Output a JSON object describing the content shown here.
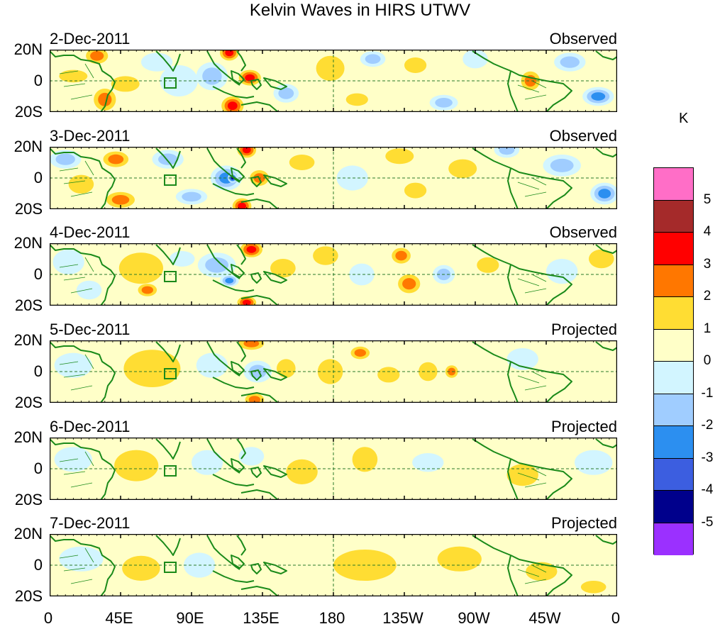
{
  "title": "Kelvin Waves in HIRS UTWV",
  "units": "K",
  "lat_labels": [
    "20N",
    "0",
    "20S"
  ],
  "lon_labels": [
    "0",
    "45E",
    "90E",
    "135E",
    "180",
    "135W",
    "90W",
    "45W",
    "0"
  ],
  "panels": [
    {
      "date": "2-Dec-2011",
      "status": "Observed"
    },
    {
      "date": "3-Dec-2011",
      "status": "Observed"
    },
    {
      "date": "4-Dec-2011",
      "status": "Observed"
    },
    {
      "date": "5-Dec-2011",
      "status": "Projected"
    },
    {
      "date": "6-Dec-2011",
      "status": "Projected"
    },
    {
      "date": "7-Dec-2011",
      "status": "Projected"
    }
  ],
  "colorbar": {
    "levels": [
      "5",
      "4",
      "3",
      "2",
      "1",
      "0",
      "-1",
      "-2",
      "-3",
      "-4",
      "-5"
    ],
    "colors": [
      "#ff6ec7",
      "#a52a2a",
      "#ff0000",
      "#ff7700",
      "#ffdd33",
      "#ffffc8",
      "#d2f5ff",
      "#a0cdff",
      "#2c8ff0",
      "#3c5ee0",
      "#00008c",
      "#9b30ff"
    ]
  },
  "colors": {
    "coastline": "#1a8a1a",
    "equator": "#2a7a2a"
  },
  "anomaly_blobs": [
    [
      {
        "lon": 15,
        "lat": 3,
        "rx": 9,
        "ry": 4,
        "v": 1
      },
      {
        "lon": 30,
        "lat": 16,
        "rx": 7,
        "ry": 5,
        "v": 2
      },
      {
        "lon": 35,
        "lat": -12,
        "rx": 7,
        "ry": 7,
        "v": 2
      },
      {
        "lon": 48,
        "lat": -2,
        "rx": 9,
        "ry": 5,
        "v": 1
      },
      {
        "lon": 68,
        "lat": 12,
        "rx": 10,
        "ry": 6,
        "v": -1
      },
      {
        "lon": 82,
        "lat": 0,
        "rx": 12,
        "ry": 10,
        "v": -1
      },
      {
        "lon": 103,
        "lat": 3,
        "rx": 10,
        "ry": 9,
        "v": -2
      },
      {
        "lon": 114,
        "lat": 18,
        "rx": 6,
        "ry": 5,
        "v": 3
      },
      {
        "lon": 127,
        "lat": 2,
        "rx": 7,
        "ry": 5,
        "v": 3
      },
      {
        "lon": 116,
        "lat": -16,
        "rx": 7,
        "ry": 6,
        "v": 3
      },
      {
        "lon": 150,
        "lat": -8,
        "rx": 8,
        "ry": 6,
        "v": -2
      },
      {
        "lon": 178,
        "lat": 8,
        "rx": 9,
        "ry": 8,
        "v": 1
      },
      {
        "lon": 195,
        "lat": -12,
        "rx": 7,
        "ry": 4,
        "v": 1
      },
      {
        "lon": 205,
        "lat": 14,
        "rx": 8,
        "ry": 5,
        "v": -2
      },
      {
        "lon": 232,
        "lat": 10,
        "rx": 7,
        "ry": 5,
        "v": 1
      },
      {
        "lon": 250,
        "lat": -14,
        "rx": 9,
        "ry": 5,
        "v": -2
      },
      {
        "lon": 270,
        "lat": 14,
        "rx": 8,
        "ry": 6,
        "v": -1
      },
      {
        "lon": 305,
        "lat": 0,
        "rx": 6,
        "ry": 6,
        "v": 2
      },
      {
        "lon": 330,
        "lat": 12,
        "rx": 10,
        "ry": 6,
        "v": -2
      },
      {
        "lon": 348,
        "lat": -10,
        "rx": 10,
        "ry": 6,
        "v": -3
      }
    ],
    [
      {
        "lon": 10,
        "lat": 12,
        "rx": 10,
        "ry": 6,
        "v": -2
      },
      {
        "lon": 20,
        "lat": -4,
        "rx": 8,
        "ry": 6,
        "v": 1
      },
      {
        "lon": 42,
        "lat": 12,
        "rx": 8,
        "ry": 5,
        "v": 2
      },
      {
        "lon": 45,
        "lat": -14,
        "rx": 9,
        "ry": 5,
        "v": 2
      },
      {
        "lon": 75,
        "lat": 12,
        "rx": 10,
        "ry": 6,
        "v": -2
      },
      {
        "lon": 90,
        "lat": -12,
        "rx": 10,
        "ry": 5,
        "v": -2
      },
      {
        "lon": 112,
        "lat": 0,
        "rx": 10,
        "ry": 8,
        "v": -3
      },
      {
        "lon": 116,
        "lat": 0,
        "rx": 3,
        "ry": 3,
        "v": -5
      },
      {
        "lon": 125,
        "lat": 18,
        "rx": 6,
        "ry": 5,
        "v": 3
      },
      {
        "lon": 133,
        "lat": 0,
        "rx": 6,
        "ry": 5,
        "v": 2
      },
      {
        "lon": 122,
        "lat": -18,
        "rx": 6,
        "ry": 5,
        "v": 3
      },
      {
        "lon": 160,
        "lat": 10,
        "rx": 8,
        "ry": 5,
        "v": 1
      },
      {
        "lon": 192,
        "lat": 0,
        "rx": 10,
        "ry": 8,
        "v": -1
      },
      {
        "lon": 222,
        "lat": 14,
        "rx": 9,
        "ry": 5,
        "v": 1
      },
      {
        "lon": 232,
        "lat": -8,
        "rx": 7,
        "ry": 5,
        "v": 1
      },
      {
        "lon": 262,
        "lat": 6,
        "rx": 9,
        "ry": 6,
        "v": 1
      },
      {
        "lon": 290,
        "lat": 18,
        "rx": 8,
        "ry": 5,
        "v": -2
      },
      {
        "lon": 325,
        "lat": 8,
        "rx": 12,
        "ry": 7,
        "v": -2
      },
      {
        "lon": 352,
        "lat": -10,
        "rx": 9,
        "ry": 7,
        "v": -3
      }
    ],
    [
      {
        "lon": 12,
        "lat": 8,
        "rx": 10,
        "ry": 8,
        "v": -1
      },
      {
        "lon": 25,
        "lat": -10,
        "rx": 8,
        "ry": 6,
        "v": -1
      },
      {
        "lon": 58,
        "lat": 4,
        "rx": 14,
        "ry": 10,
        "v": 1
      },
      {
        "lon": 62,
        "lat": -10,
        "rx": 6,
        "ry": 4,
        "v": 2
      },
      {
        "lon": 84,
        "lat": 10,
        "rx": 8,
        "ry": 5,
        "v": -1
      },
      {
        "lon": 106,
        "lat": 6,
        "rx": 12,
        "ry": 8,
        "v": -2
      },
      {
        "lon": 114,
        "lat": -4,
        "rx": 6,
        "ry": 4,
        "v": -3
      },
      {
        "lon": 128,
        "lat": 16,
        "rx": 7,
        "ry": 5,
        "v": 3
      },
      {
        "lon": 125,
        "lat": -18,
        "rx": 6,
        "ry": 4,
        "v": 3
      },
      {
        "lon": 148,
        "lat": 4,
        "rx": 8,
        "ry": 6,
        "v": 1
      },
      {
        "lon": 175,
        "lat": 12,
        "rx": 8,
        "ry": 6,
        "v": 1
      },
      {
        "lon": 198,
        "lat": 0,
        "rx": 8,
        "ry": 7,
        "v": -1
      },
      {
        "lon": 223,
        "lat": 12,
        "rx": 6,
        "ry": 5,
        "v": 2
      },
      {
        "lon": 228,
        "lat": -6,
        "rx": 7,
        "ry": 6,
        "v": 2
      },
      {
        "lon": 250,
        "lat": 0,
        "rx": 7,
        "ry": 6,
        "v": -2
      },
      {
        "lon": 278,
        "lat": 6,
        "rx": 7,
        "ry": 5,
        "v": 1
      },
      {
        "lon": 325,
        "lat": 2,
        "rx": 10,
        "ry": 8,
        "v": -1
      },
      {
        "lon": 350,
        "lat": 10,
        "rx": 8,
        "ry": 6,
        "v": 1
      }
    ],
    [
      {
        "lon": 15,
        "lat": 4,
        "rx": 12,
        "ry": 8,
        "v": -1
      },
      {
        "lon": 65,
        "lat": 2,
        "rx": 18,
        "ry": 12,
        "v": 1
      },
      {
        "lon": 103,
        "lat": 4,
        "rx": 10,
        "ry": 8,
        "v": -1
      },
      {
        "lon": 132,
        "lat": 0,
        "rx": 9,
        "ry": 7,
        "v": -2
      },
      {
        "lon": 128,
        "lat": 18,
        "rx": 8,
        "ry": 4,
        "v": 2
      },
      {
        "lon": 130,
        "lat": -18,
        "rx": 6,
        "ry": 4,
        "v": 2
      },
      {
        "lon": 150,
        "lat": 2,
        "rx": 6,
        "ry": 6,
        "v": 1
      },
      {
        "lon": 178,
        "lat": 0,
        "rx": 8,
        "ry": 8,
        "v": 1
      },
      {
        "lon": 197,
        "lat": 12,
        "rx": 6,
        "ry": 4,
        "v": 2
      },
      {
        "lon": 215,
        "lat": -2,
        "rx": 7,
        "ry": 5,
        "v": 1
      },
      {
        "lon": 240,
        "lat": 0,
        "rx": 6,
        "ry": 6,
        "v": 1
      },
      {
        "lon": 255,
        "lat": 0,
        "rx": 4,
        "ry": 4,
        "v": 2
      },
      {
        "lon": 300,
        "lat": 8,
        "rx": 10,
        "ry": 7,
        "v": -1
      }
    ],
    [
      {
        "lon": 15,
        "lat": 6,
        "rx": 12,
        "ry": 8,
        "v": -1
      },
      {
        "lon": 55,
        "lat": 2,
        "rx": 14,
        "ry": 10,
        "v": 1
      },
      {
        "lon": 100,
        "lat": 4,
        "rx": 10,
        "ry": 8,
        "v": -1
      },
      {
        "lon": 128,
        "lat": 8,
        "rx": 8,
        "ry": 6,
        "v": -1
      },
      {
        "lon": 160,
        "lat": -2,
        "rx": 10,
        "ry": 8,
        "v": 1
      },
      {
        "lon": 200,
        "lat": 6,
        "rx": 8,
        "ry": 8,
        "v": 1
      },
      {
        "lon": 240,
        "lat": 4,
        "rx": 10,
        "ry": 6,
        "v": -1
      },
      {
        "lon": 300,
        "lat": -4,
        "rx": 10,
        "ry": 7,
        "v": 1
      },
      {
        "lon": 345,
        "lat": 4,
        "rx": 12,
        "ry": 8,
        "v": -1
      }
    ],
    [
      {
        "lon": 20,
        "lat": 4,
        "rx": 14,
        "ry": 8,
        "v": -1
      },
      {
        "lon": 58,
        "lat": -2,
        "rx": 12,
        "ry": 8,
        "v": 1
      },
      {
        "lon": 95,
        "lat": 0,
        "rx": 10,
        "ry": 8,
        "v": -1
      },
      {
        "lon": 200,
        "lat": 0,
        "rx": 20,
        "ry": 10,
        "v": 1
      },
      {
        "lon": 260,
        "lat": 4,
        "rx": 14,
        "ry": 8,
        "v": 1
      },
      {
        "lon": 312,
        "lat": -4,
        "rx": 10,
        "ry": 6,
        "v": 1
      },
      {
        "lon": 345,
        "lat": -14,
        "rx": 8,
        "ry": 4,
        "v": 1
      }
    ]
  ]
}
